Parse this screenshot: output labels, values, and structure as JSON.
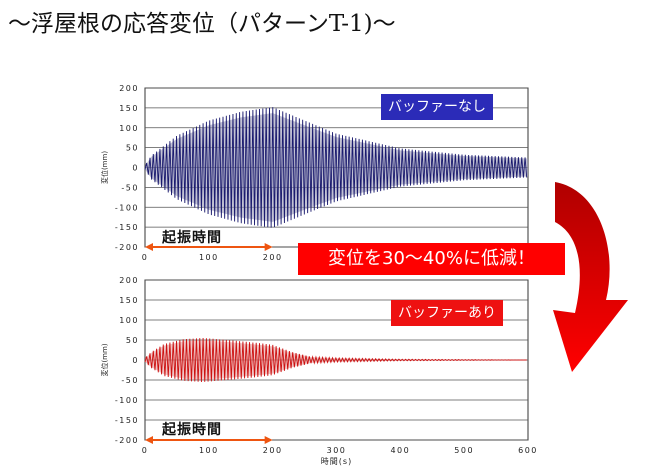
{
  "title": "〜浮屋根の応答変位（パターンT-1)〜",
  "callout": "変位を30〜40%に低減！",
  "annotation_excitation": "起振時間",
  "colors": {
    "without_buffer": "#1a1a6e",
    "with_buffer": "#cc1111",
    "tag_blue": "#2b2bb8",
    "tag_red": "#ee1111",
    "arrow_orange": "#ee5511",
    "curved_arrow": "#dd0000"
  },
  "chart_data": [
    {
      "type": "line",
      "label": "バッファーなし",
      "ylabel": "変位(mm)",
      "xlabel": "",
      "xlim": [
        0,
        600
      ],
      "ylim": [
        -200,
        200
      ],
      "yticks": [
        "200",
        "150",
        "100",
        "50",
        "0",
        "-50",
        "-100",
        "-150",
        "-200"
      ],
      "xticks": [
        "0",
        "100",
        "200"
      ],
      "grid": true,
      "excitation_interval": [
        0,
        200
      ],
      "envelope": {
        "x": [
          0,
          10,
          50,
          100,
          150,
          200,
          250,
          300,
          400,
          500,
          600
        ],
        "y": [
          5,
          30,
          80,
          118,
          140,
          152,
          118,
          85,
          48,
          32,
          25
        ]
      }
    },
    {
      "type": "line",
      "label": "バッファーあり",
      "ylabel": "変位(mm)",
      "xlabel": "時間(s)",
      "xlim": [
        0,
        600
      ],
      "ylim": [
        -200,
        200
      ],
      "yticks": [
        "200",
        "150",
        "100",
        "50",
        "0",
        "-50",
        "-100",
        "-150",
        "-200"
      ],
      "xticks": [
        "0",
        "100",
        "200",
        "300",
        "400",
        "500",
        "600"
      ],
      "grid": true,
      "excitation_interval": [
        0,
        200
      ],
      "envelope": {
        "x": [
          0,
          10,
          30,
          60,
          90,
          130,
          180,
          200,
          230,
          260,
          300,
          400,
          500,
          600
        ],
        "y": [
          5,
          20,
          40,
          52,
          55,
          50,
          42,
          38,
          20,
          8,
          5,
          2,
          1,
          0
        ]
      }
    }
  ]
}
